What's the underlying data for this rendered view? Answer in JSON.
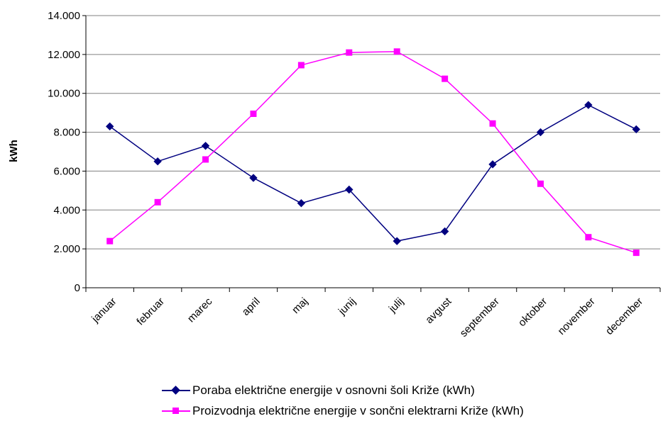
{
  "chart_data": {
    "type": "line",
    "categories": [
      "januar",
      "februar",
      "marec",
      "april",
      "maj",
      "junij",
      "julij",
      "avgust",
      "september",
      "oktober",
      "november",
      "december"
    ],
    "series": [
      {
        "name": "Poraba električne energije v osnovni šoli Križe (kWh)",
        "color": "#000080",
        "marker": "diamond",
        "values": [
          8300,
          6500,
          7300,
          5650,
          4350,
          5050,
          2400,
          2900,
          6350,
          8000,
          9400,
          8150
        ]
      },
      {
        "name": "Proizvodnja električne energije v sončni elektrarni Križe (kWh)",
        "color": "#FF00FF",
        "marker": "square",
        "values": [
          2400,
          4400,
          6600,
          8950,
          11450,
          12100,
          12150,
          10750,
          8450,
          5350,
          2600,
          1800
        ]
      }
    ],
    "ylabel": "kWh",
    "xlabel": "",
    "ylim": [
      0,
      14000
    ],
    "yticks": [
      "0",
      "2.000",
      "4.000",
      "6.000",
      "8.000",
      "10.000",
      "12.000",
      "14.000"
    ],
    "grid": true,
    "legend_position": "bottom"
  }
}
